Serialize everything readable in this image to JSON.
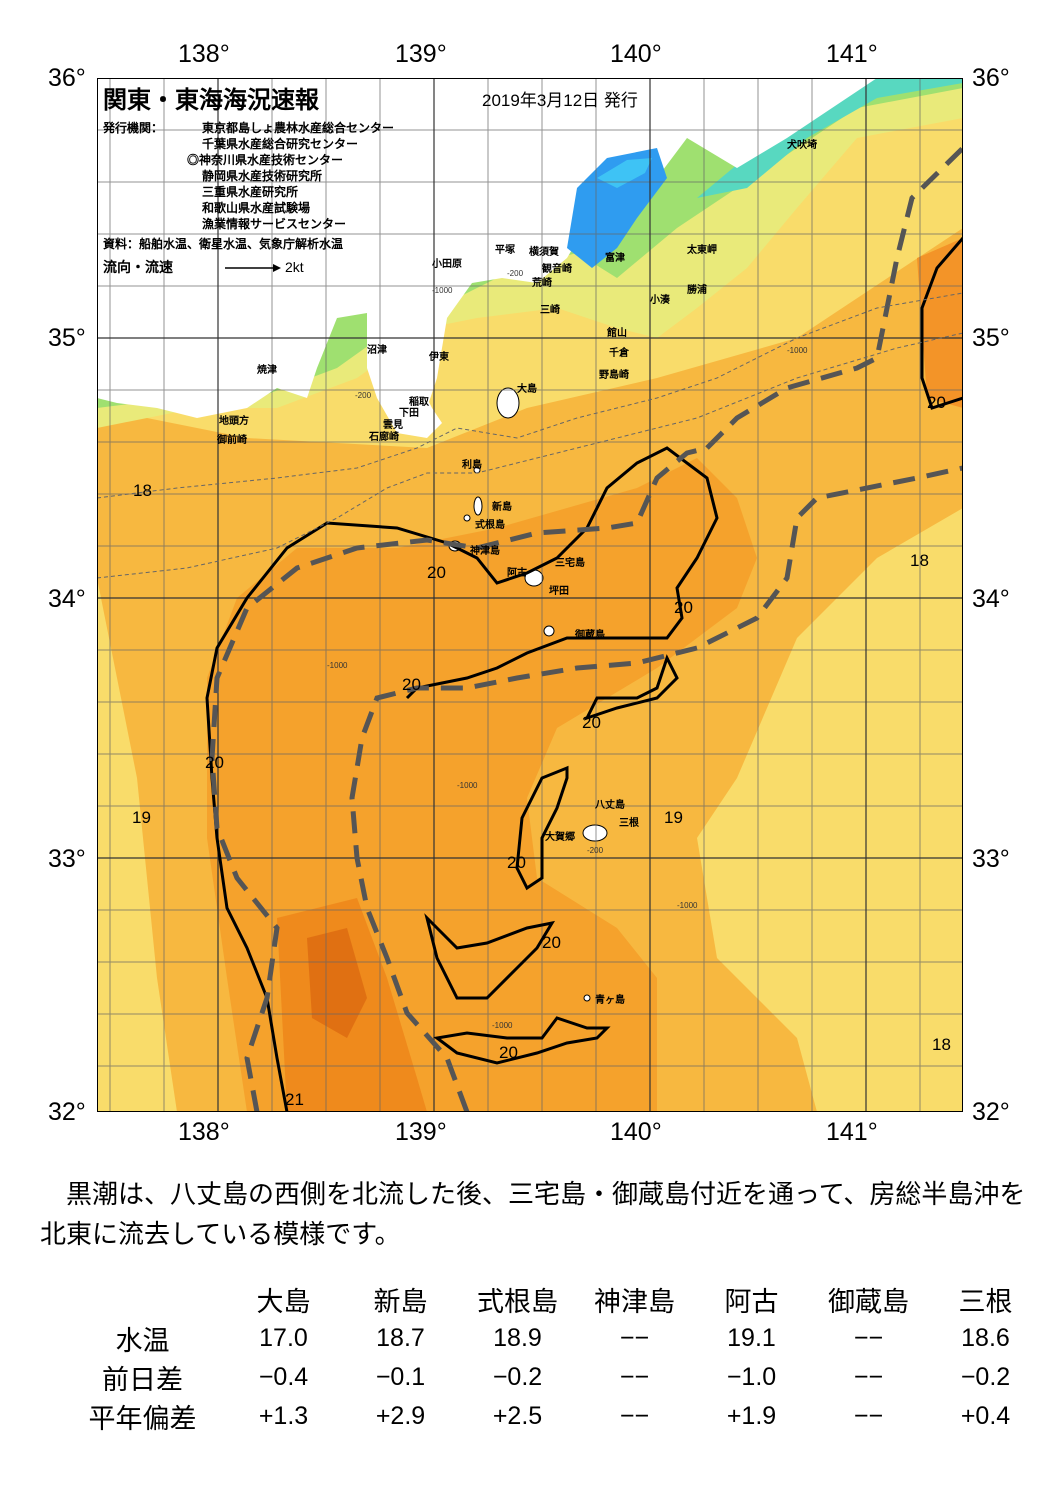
{
  "title": "関東・東海海況速報",
  "issued": "2019年3月12日 発行",
  "agencies_label": "発行機関：",
  "agencies": [
    "東京都島しょ農林水産総合センター",
    "千葉県水産総合研究センター",
    "◎神奈川県水産技術センター",
    "静岡県水産技術研究所",
    "三重県水産研究所",
    "和歌山県水産試験場",
    "漁業情報サービスセンター"
  ],
  "source": "資料：船舶水温、衛星水温、気象庁解析水温",
  "current_legend": {
    "label": "流向・流速",
    "speed": "2kt"
  },
  "axes": {
    "lon_ticks": [
      "138°",
      "139°",
      "140°",
      "141°"
    ],
    "lat_ticks": [
      "36°",
      "35°",
      "34°",
      "33°",
      "32°"
    ],
    "lon_range": [
      137.5,
      141.5
    ],
    "lat_range": [
      32,
      36
    ]
  },
  "colors": {
    "kuroshio_axis": "#555555",
    "isotherm": "#000000",
    "land": "#ffffff",
    "warm": "#f5a030",
    "cool": "#f8e070",
    "hot": "#e87010"
  },
  "place_labels": [
    "犬吠埼",
    "太東岬",
    "勝浦",
    "小湊",
    "館山",
    "千倉",
    "野島崎",
    "富津",
    "横須賀",
    "観音崎",
    "荒崎",
    "三崎",
    "平塚",
    "小田原",
    "沼津",
    "伊東",
    "稲取",
    "下田",
    "雲見",
    "石廊崎",
    "焼津",
    "地頭方",
    "御前崎",
    "大島",
    "利島",
    "新島",
    "式根島",
    "神津島",
    "三宅島",
    "阿古",
    "坪田",
    "御蔵島",
    "八丈島",
    "三根",
    "大賀郷",
    "青ヶ島"
  ],
  "isotherm_labels": [
    "20",
    "20",
    "20",
    "20",
    "20",
    "20",
    "20",
    "20",
    "20",
    "19",
    "19",
    "18",
    "18",
    "18",
    "21"
  ],
  "depth_labels": [
    "-200",
    "-1000"
  ],
  "summary": "黒潮は、八丈島の西側を北流した後、三宅島・御蔵島付近を通って、房総半島沖を北東に流去している模様です。",
  "table": {
    "columns": [
      "大島",
      "新島",
      "式根島",
      "神津島",
      "阿古",
      "御蔵島",
      "三根"
    ],
    "rows": [
      {
        "label": "水温",
        "values": [
          "17.0",
          "18.7",
          "18.9",
          "−−",
          "19.1",
          "−−",
          "18.6"
        ]
      },
      {
        "label": "前日差",
        "values": [
          "−0.4",
          "−0.1",
          "−0.2",
          "−−",
          "−1.0",
          "−−",
          "−0.2"
        ]
      },
      {
        "label": "平年偏差",
        "values": [
          "+1.3",
          "+2.9",
          "+2.5",
          "−−",
          "+1.9",
          "−−",
          "+0.4"
        ]
      }
    ]
  }
}
